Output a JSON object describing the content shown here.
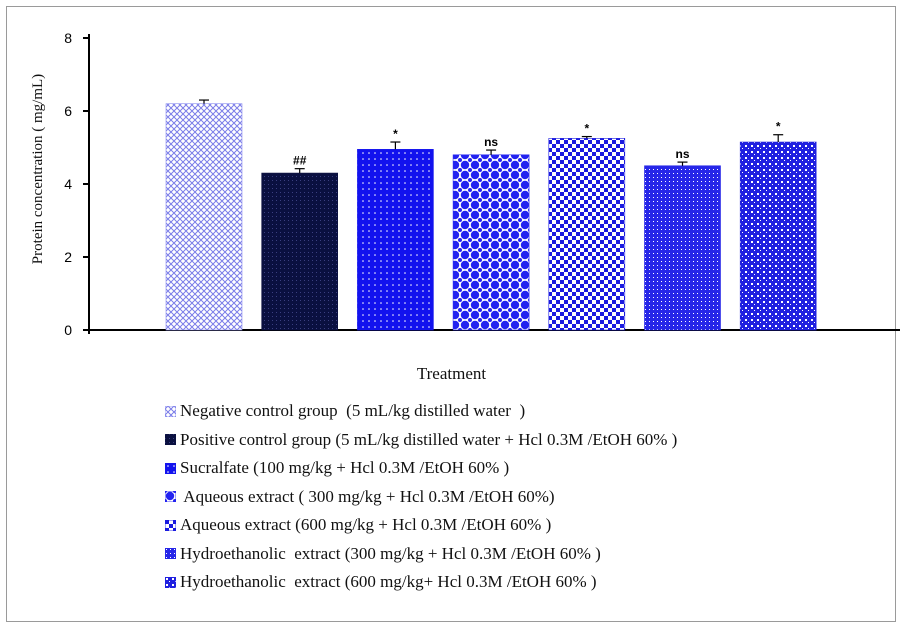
{
  "chart_data": {
    "type": "bar",
    "title": "",
    "xlabel": "Treatment",
    "ylabel": "Protein concentration ( mg/mL)",
    "ylim": [
      0,
      8
    ],
    "yticks": [
      "0",
      "2",
      "4",
      "6",
      "8"
    ],
    "grid": false,
    "legend_position": "bottom",
    "categories": [
      "Negative control group  (5 mL/kg distilled water  )",
      "Positive control group (5 mL/kg distilled water + Hcl 0.3M /EtOH 60% )",
      "Sucralfate (100 mg/kg + Hcl 0.3M /EtOH 60% )",
      " Aqueous extract ( 300 mg/kg + Hcl 0.3M /EtOH 60%)",
      "Aqueous extract (600 mg/kg + Hcl 0.3M /EtOH 60% )",
      "Hydroethanolic  extract (300 mg/kg + Hcl 0.3M /EtOH 60% )",
      "Hydroethanolic  extract (600 mg/kg+ Hcl 0.3M /EtOH 60% )"
    ],
    "values": [
      6.2,
      4.3,
      4.95,
      4.8,
      5.25,
      4.5,
      5.15
    ],
    "errors": [
      0.1,
      0.12,
      0.2,
      0.13,
      0.05,
      0.1,
      0.2
    ],
    "annotations": [
      "",
      "##",
      "*",
      "ns",
      "*",
      "ns",
      "*"
    ],
    "colors": [
      "#8a8cf0",
      "#0a1040",
      "#1818ee",
      "#2222f0",
      "#1a1ae0",
      "#2626e8",
      "#2020e0"
    ]
  }
}
